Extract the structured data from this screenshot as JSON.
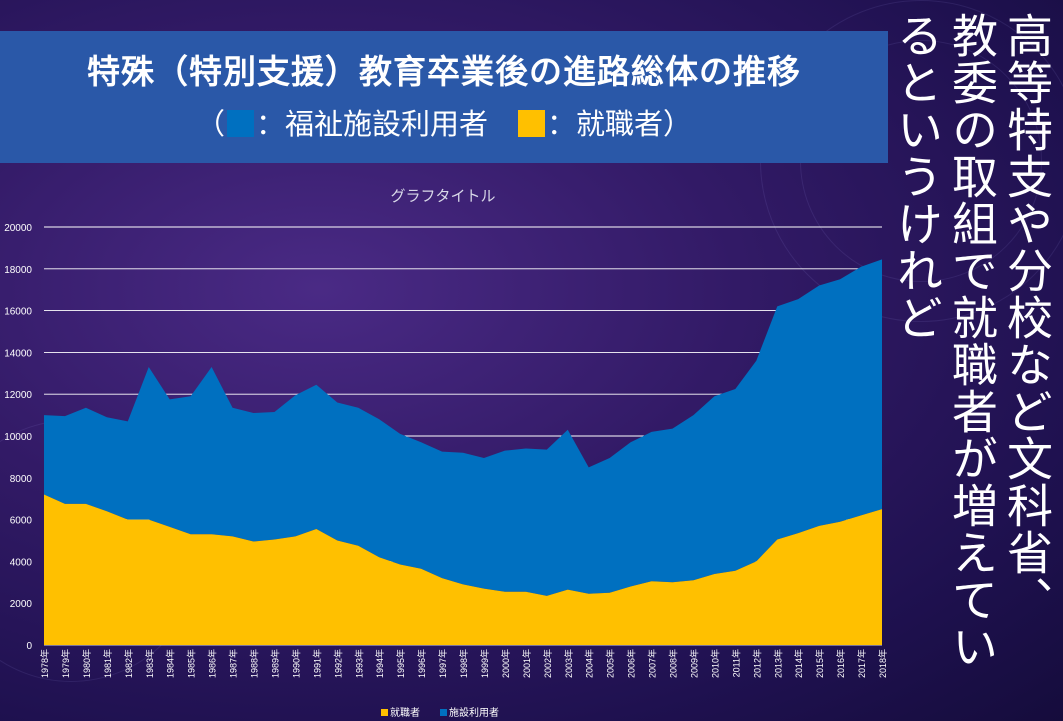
{
  "slide": {
    "title": "特殊（特別支援）教育卒業後の進路総体の推移",
    "subtitle_open": "（",
    "subtitle_welfare": "：福祉施設利用者",
    "subtitle_employed": "：就職者",
    "subtitle_close": "）",
    "side_text": [
      "高等特支や分校など文科省、",
      "教委の取組で就職者が増えてい",
      "るというけれど"
    ]
  },
  "colors": {
    "welfare": "#0070c0",
    "employed": "#ffc000",
    "title_bg": "#2a58a8"
  },
  "chart_data": {
    "type": "area",
    "stacked": true,
    "title": "グラフタイトル",
    "x": [
      "1978年",
      "1979年",
      "1980年",
      "1981年",
      "1982年",
      "1983年",
      "1984年",
      "1985年",
      "1986年",
      "1987年",
      "1988年",
      "1989年",
      "1990年",
      "1991年",
      "1992年",
      "1993年",
      "1994年",
      "1995年",
      "1996年",
      "1997年",
      "1998年",
      "1999年",
      "2000年",
      "2001年",
      "2002年",
      "2003年",
      "2004年",
      "2005年",
      "2006年",
      "2007年",
      "2008年",
      "2009年",
      "2010年",
      "2011年",
      "2012年",
      "2013年",
      "2014年",
      "2015年",
      "2016年",
      "2017年",
      "2018年"
    ],
    "series": [
      {
        "name": "就職者",
        "color": "#ffc000",
        "values": [
          7200,
          6750,
          6750,
          6400,
          6000,
          6000,
          5650,
          5300,
          5300,
          5200,
          4950,
          5050,
          5200,
          5550,
          5000,
          4750,
          4200,
          3850,
          3650,
          3200,
          2900,
          2700,
          2550,
          2550,
          2350,
          2650,
          2450,
          2500,
          2800,
          3050,
          3000,
          3100,
          3400,
          3550,
          4000,
          5050,
          5350,
          5700,
          5900,
          6200,
          6500
        ]
      },
      {
        "name": "施設利用者",
        "color": "#0070c0",
        "values": [
          3800,
          4200,
          4600,
          4500,
          4700,
          7300,
          6100,
          6600,
          8000,
          6150,
          6150,
          6100,
          6750,
          6900,
          6600,
          6600,
          6600,
          6250,
          6050,
          6050,
          6300,
          6250,
          6750,
          6850,
          7000,
          7650,
          6050,
          6450,
          6900,
          7150,
          7350,
          7900,
          8500,
          8700,
          9600,
          11150,
          11200,
          11500,
          11600,
          11900,
          11950
        ]
      }
    ],
    "ylim": [
      0,
      20000
    ],
    "yticks": [
      0,
      2000,
      4000,
      6000,
      8000,
      10000,
      12000,
      14000,
      16000,
      18000,
      20000
    ],
    "grid": true,
    "legend": "bottom"
  }
}
